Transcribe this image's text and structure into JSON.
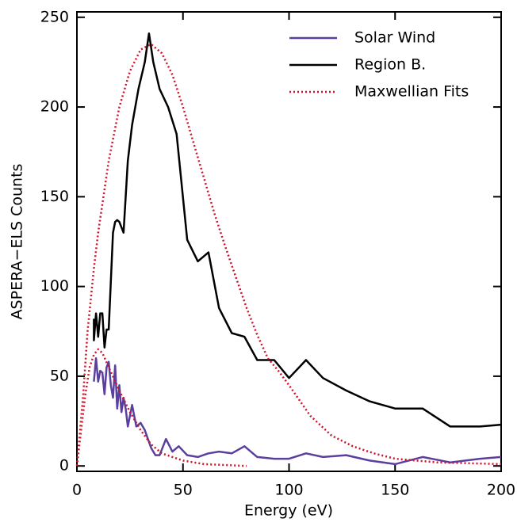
{
  "chart_data": {
    "type": "line",
    "xlabel": "Energy (eV)",
    "ylabel": "ASPERA−ELS Counts",
    "xlim": [
      0,
      200
    ],
    "ylim": [
      -3,
      253
    ],
    "xticks": [
      0,
      50,
      100,
      150,
      200
    ],
    "yticks": [
      0,
      50,
      100,
      150,
      200,
      250
    ],
    "legend": "upper right",
    "series": [
      {
        "name": "Solar Wind",
        "color": "#5b3f9e",
        "dash": "solid",
        "x": [
          8,
          9,
          10,
          11,
          12,
          13,
          14,
          15,
          16,
          17,
          18,
          19,
          20,
          21,
          22,
          23,
          24,
          26,
          28,
          30,
          32,
          35,
          37,
          39,
          42,
          45,
          48,
          52,
          57,
          62,
          67,
          73,
          79,
          85,
          93,
          100,
          108,
          116,
          127,
          138,
          150,
          163,
          176,
          190,
          200
        ],
        "values": [
          47,
          60,
          47,
          53,
          52,
          40,
          55,
          58,
          45,
          38,
          56,
          32,
          45,
          30,
          38,
          32,
          22,
          34,
          22,
          24,
          20,
          10,
          6,
          6,
          15,
          8,
          11,
          6,
          5,
          7,
          8,
          7,
          11,
          5,
          4,
          4,
          7,
          5,
          6,
          3,
          1,
          5,
          2,
          4,
          5
        ]
      },
      {
        "name": "Region B.",
        "color": "#000000",
        "dash": "solid",
        "x": [
          8,
          8,
          9,
          10,
          11,
          12,
          13,
          14,
          15,
          17,
          18,
          19,
          20,
          22,
          24,
          26,
          29,
          32,
          34,
          36,
          39,
          43,
          47,
          52,
          57,
          62,
          67,
          73,
          79,
          85,
          93,
          100,
          108,
          116,
          127,
          138,
          150,
          163,
          176,
          190,
          200
        ],
        "values": [
          82,
          70,
          85,
          72,
          85,
          85,
          66,
          76,
          76,
          130,
          136,
          137,
          136,
          130,
          170,
          190,
          210,
          225,
          241,
          225,
          210,
          200,
          185,
          126,
          114,
          119,
          88,
          74,
          72,
          59,
          59,
          49,
          59,
          49,
          42,
          36,
          32,
          32,
          22,
          22,
          23
        ]
      },
      {
        "name": "Maxwellian Fits",
        "color": "#d0112b",
        "dash": "dotted",
        "x": [
          0,
          3,
          5,
          8,
          10,
          15,
          20,
          25,
          30,
          35,
          40,
          45,
          50,
          55,
          60,
          65,
          70,
          75,
          80,
          85,
          90,
          95,
          100,
          110,
          120,
          130,
          140,
          150,
          170,
          200,
          null,
          0,
          2,
          4,
          6,
          8,
          10,
          12,
          15,
          20,
          25,
          30,
          35,
          40,
          50,
          60,
          80
        ],
        "values": [
          0,
          40,
          75,
          110,
          130,
          170,
          200,
          220,
          232,
          235,
          230,
          218,
          200,
          180,
          160,
          140,
          122,
          105,
          88,
          73,
          60,
          53,
          45,
          28,
          17,
          11,
          7,
          4,
          2,
          1,
          null,
          0,
          20,
          40,
          55,
          62,
          65,
          63,
          55,
          42,
          30,
          20,
          12,
          7,
          3,
          1,
          0
        ]
      }
    ]
  }
}
